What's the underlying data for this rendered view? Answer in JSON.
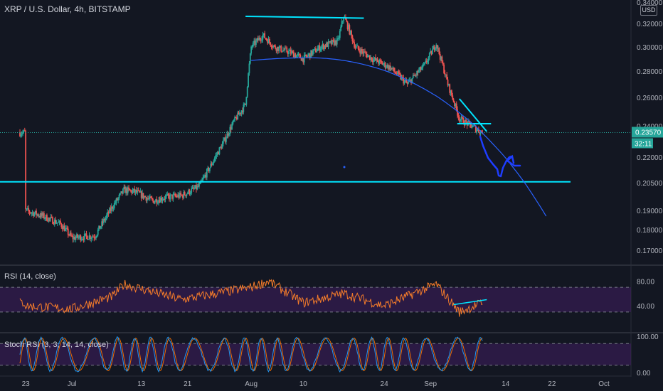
{
  "header": {
    "title": "XRP / U.S. Dollar, 4h, BITSTAMP",
    "currency": "USD"
  },
  "price_badge": {
    "value": "0.23570",
    "countdown": "32:11"
  },
  "colors": {
    "up": "#26a69a",
    "down": "#ef5350",
    "cyan": "#00e5ff",
    "drawing": "#1e3dff",
    "rsi": "#f57c2a",
    "stoch_k": "#2196f3",
    "stoch_d": "#ef6c00",
    "band": "#4a1f6e"
  },
  "chart_data": [
    {
      "type": "candlestick",
      "title": "XRP / U.S. Dollar, 4h, BITSTAMP",
      "y_ticks": [
        "0.34000",
        "0.32000",
        "0.30000",
        "0.28000",
        "0.26000",
        "0.24000",
        "0.22000",
        "0.20500",
        "0.19000",
        "0.18000",
        "0.17000"
      ],
      "x_ticks": [
        "23",
        "Jul",
        "13",
        "21",
        "Aug",
        "10",
        "24",
        "Sep",
        "14",
        "22",
        "Oct"
      ],
      "ylim": [
        0.165,
        0.345
      ],
      "last_price": 0.2357,
      "close_path": [
        [
          "Jun 23",
          0.19
        ],
        [
          "Jun 26",
          0.187
        ],
        [
          "Jun 29",
          0.183
        ],
        [
          "Jul 1",
          0.176
        ],
        [
          "Jul 5",
          0.177
        ],
        [
          "Jul 8",
          0.192
        ],
        [
          "Jul 10",
          0.201
        ],
        [
          "Jul 12",
          0.2
        ],
        [
          "Jul 15",
          0.195
        ],
        [
          "Jul 17",
          0.197
        ],
        [
          "Jul 20",
          0.198
        ],
        [
          "Jul 23",
          0.203
        ],
        [
          "Jul 25",
          0.215
        ],
        [
          "Jul 27",
          0.228
        ],
        [
          "Jul 29",
          0.243
        ],
        [
          "Jul 31",
          0.255
        ],
        [
          "Aug 1",
          0.3
        ],
        [
          "Aug 3",
          0.31
        ],
        [
          "Aug 5",
          0.3
        ],
        [
          "Aug 8",
          0.295
        ],
        [
          "Aug 10",
          0.29
        ],
        [
          "Aug 13",
          0.3
        ],
        [
          "Aug 16",
          0.305
        ],
        [
          "Aug 17",
          0.327
        ],
        [
          "Aug 19",
          0.3
        ],
        [
          "Aug 22",
          0.29
        ],
        [
          "Aug 25",
          0.283
        ],
        [
          "Aug 28",
          0.27
        ],
        [
          "Aug 31",
          0.285
        ],
        [
          "Sep 2",
          0.303
        ],
        [
          "Sep 4",
          0.27
        ],
        [
          "Sep 6",
          0.245
        ],
        [
          "Sep 8",
          0.24
        ],
        [
          "Sep 10",
          0.2357
        ]
      ],
      "drawings": {
        "support_level": 0.2055,
        "top_resistance": [
          [
            "Aug 1",
            0.326
          ],
          [
            "Aug 19",
            0.325
          ]
        ],
        "triangle_top": [
          [
            "Sep 6",
            0.259
          ],
          [
            "Sep 10",
            0.24
          ]
        ],
        "triangle_bottom": [
          [
            "Sep 6",
            0.2415
          ],
          [
            "Sep 10",
            0.2415
          ]
        ],
        "arc": "rounded top from Aug 1 (0.285) through Aug 11 (0.291) down to Sep 21 (0.187)",
        "projection": "hand-drawn drop to the support near 0.2055 followed by a bounce"
      }
    },
    {
      "type": "line",
      "title": "RSI (14, close)",
      "y_ticks": [
        "80.00",
        "40.00"
      ],
      "band": [
        30,
        70
      ],
      "approx_levels": [
        [
          "Jun 23",
          40
        ],
        [
          "Jul 1",
          35
        ],
        [
          "Jul 8",
          55
        ],
        [
          "Jul 10",
          75
        ],
        [
          "Jul 20",
          50
        ],
        [
          "Aug 1",
          70
        ],
        [
          "Aug 4",
          80
        ],
        [
          "Aug 10",
          45
        ],
        [
          "Aug 17",
          60
        ],
        [
          "Aug 24",
          40
        ],
        [
          "Sep 2",
          75
        ],
        [
          "Sep 6",
          30
        ],
        [
          "Sep 10",
          45
        ]
      ]
    },
    {
      "type": "line",
      "title": "Stoch RSI (3, 3, 14, 14, close)",
      "y_ticks": [
        "100.00",
        "0.00"
      ],
      "band": [
        20,
        80
      ],
      "series": [
        {
          "name": "K"
        },
        {
          "name": "D"
        }
      ]
    }
  ]
}
